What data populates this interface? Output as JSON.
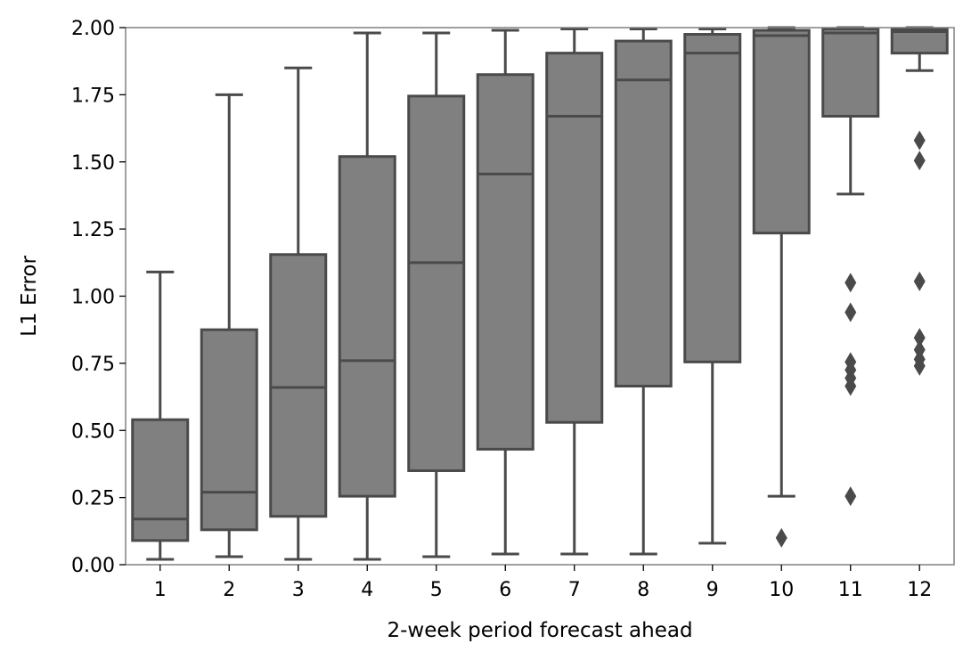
{
  "chart_data": {
    "type": "boxplot",
    "title": "",
    "xlabel": "2-week period forecast ahead",
    "ylabel": "L1 Error",
    "ylim": [
      0,
      2.0
    ],
    "yticks": [
      "0.00",
      "0.25",
      "0.50",
      "0.75",
      "1.00",
      "1.25",
      "1.50",
      "1.75",
      "2.00"
    ],
    "categories": [
      "1",
      "2",
      "3",
      "4",
      "5",
      "6",
      "7",
      "8",
      "9",
      "10",
      "11",
      "12"
    ],
    "grid": false,
    "colors": {
      "box_fill": "#808080",
      "line": "#4a4a4a",
      "frame": "#808080"
    },
    "boxes": [
      {
        "category": "1",
        "whisker_low": 0.02,
        "q1": 0.09,
        "median": 0.17,
        "q3": 0.54,
        "whisker_high": 1.09,
        "outliers": []
      },
      {
        "category": "2",
        "whisker_low": 0.03,
        "q1": 0.13,
        "median": 0.27,
        "q3": 0.875,
        "whisker_high": 1.75,
        "outliers": []
      },
      {
        "category": "3",
        "whisker_low": 0.02,
        "q1": 0.18,
        "median": 0.66,
        "q3": 1.155,
        "whisker_high": 1.85,
        "outliers": []
      },
      {
        "category": "4",
        "whisker_low": 0.02,
        "q1": 0.255,
        "median": 0.76,
        "q3": 1.52,
        "whisker_high": 1.98,
        "outliers": []
      },
      {
        "category": "5",
        "whisker_low": 0.03,
        "q1": 0.35,
        "median": 1.125,
        "q3": 1.745,
        "whisker_high": 1.98,
        "outliers": []
      },
      {
        "category": "6",
        "whisker_low": 0.04,
        "q1": 0.43,
        "median": 1.455,
        "q3": 1.825,
        "whisker_high": 1.99,
        "outliers": []
      },
      {
        "category": "7",
        "whisker_low": 0.04,
        "q1": 0.53,
        "median": 1.67,
        "q3": 1.905,
        "whisker_high": 1.995,
        "outliers": []
      },
      {
        "category": "8",
        "whisker_low": 0.04,
        "q1": 0.665,
        "median": 1.805,
        "q3": 1.95,
        "whisker_high": 1.995,
        "outliers": []
      },
      {
        "category": "9",
        "whisker_low": 0.08,
        "q1": 0.755,
        "median": 1.905,
        "q3": 1.975,
        "whisker_high": 1.995,
        "outliers": []
      },
      {
        "category": "10",
        "whisker_low": 0.255,
        "q1": 1.235,
        "median": 1.97,
        "q3": 1.99,
        "whisker_high": 2.0,
        "outliers": [
          0.1
        ]
      },
      {
        "category": "11",
        "whisker_low": 1.38,
        "q1": 1.67,
        "median": 1.98,
        "q3": 1.995,
        "whisker_high": 2.0,
        "outliers": [
          1.05,
          0.94,
          0.755,
          0.725,
          0.695,
          0.665,
          0.255
        ]
      },
      {
        "category": "12",
        "whisker_low": 1.84,
        "q1": 1.905,
        "median": 1.985,
        "q3": 1.995,
        "whisker_high": 2.0,
        "outliers": [
          1.58,
          1.505,
          1.055,
          0.845,
          0.8,
          0.765,
          0.74
        ]
      }
    ]
  }
}
